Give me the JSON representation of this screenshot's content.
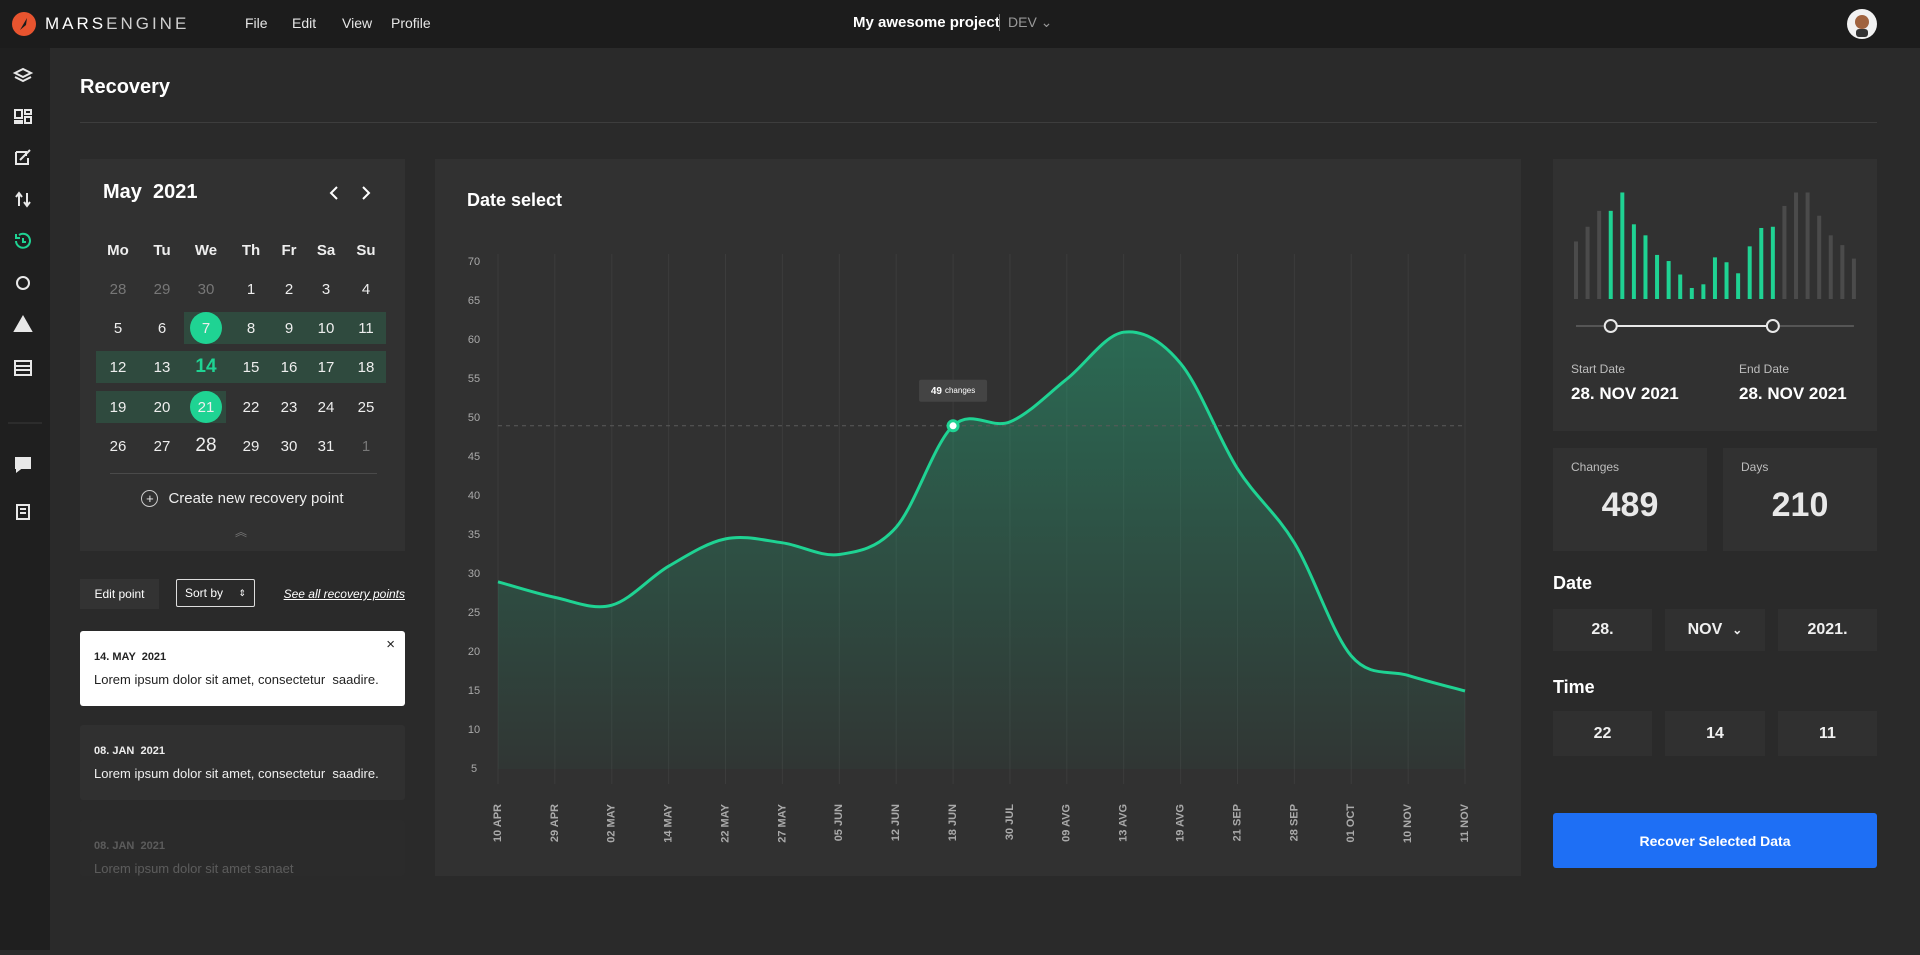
{
  "topbar": {
    "logo_left": "MARS",
    "logo_right": "ENGINE",
    "menu": [
      "File",
      "Edit",
      "View",
      "Profile"
    ],
    "project": "My awesome project",
    "environment": "DEV"
  },
  "page_title": "Recovery",
  "calendar": {
    "month": "May",
    "year": "2021",
    "weekdays": [
      "Mo",
      "Tu",
      "We",
      "Th",
      "Fr",
      "Sa",
      "Su"
    ],
    "weeks": [
      [
        28,
        29,
        30,
        1,
        2,
        3,
        4
      ],
      [
        5,
        6,
        7,
        8,
        9,
        10,
        11
      ],
      [
        12,
        13,
        14,
        15,
        16,
        17,
        18
      ],
      [
        19,
        20,
        21,
        22,
        23,
        24,
        25
      ],
      [
        26,
        27,
        28,
        29,
        30,
        31,
        1
      ]
    ],
    "action": "Create new recovery point"
  },
  "controls": {
    "edit": "Edit point",
    "sort": "Sort by",
    "see_all": "See all recovery points"
  },
  "recovery_points": [
    {
      "date": "14. MAY  2021",
      "text": "Lorem ipsum dolor sit amet, consectetur  saadire."
    },
    {
      "date": "08. JAN  2021",
      "text": "Lorem ipsum dolor sit amet, consectetur  saadire."
    },
    {
      "date": "08. JAN  2021",
      "text": "Lorem ipsum dolor sit amet sanaet"
    }
  ],
  "chart_data": [
    {
      "type": "line",
      "title": "Date select",
      "categories": [
        "10 APR",
        "29 APR",
        "02 MAY",
        "14 MAY",
        "22 MAY",
        "27 MAY",
        "05 JUN",
        "12 JUN",
        "18 JUN",
        "30 JUL",
        "09 AVG",
        "13 AVG",
        "19 AVG",
        "21 SEP",
        "28 SEP",
        "01 OCT",
        "10 NOV",
        "11 NOV"
      ],
      "values": [
        29,
        27,
        26,
        31,
        34.5,
        34,
        32.5,
        36,
        49,
        49.5,
        55,
        61,
        57,
        43.5,
        34,
        19.5,
        17,
        15
      ],
      "value_labels": [
        null,
        null,
        null,
        null,
        null,
        null,
        null,
        null,
        "49",
        null,
        null,
        null,
        null,
        null,
        null,
        null,
        null,
        null
      ],
      "tooltip_text": "changes",
      "color": "#1fd393",
      "ylim": [
        5,
        70
      ],
      "yticks": [
        5,
        10,
        15,
        20,
        25,
        30,
        35,
        40,
        45,
        50,
        55,
        60,
        65,
        70
      ],
      "grid": "x"
    },
    {
      "type": "bar",
      "values": [
        47,
        59,
        72,
        72,
        87,
        61,
        52,
        36,
        31,
        20,
        9,
        12,
        34,
        30,
        21,
        43,
        58,
        59,
        76,
        87,
        87,
        68,
        52,
        44,
        33
      ],
      "color": "#1fd393",
      "muted_color": "#4b4b4b",
      "selected_range": [
        3,
        17
      ]
    }
  ],
  "summary": {
    "start_label": "Start Date",
    "start_value": "28. NOV 2021",
    "end_label": "End Date",
    "end_value": "28. NOV 2021",
    "changes_label": "Changes",
    "changes": 489,
    "days_label": "Days",
    "days": 210
  },
  "date": {
    "label": "Date",
    "fields": [
      "28.",
      "NOV",
      "2021."
    ]
  },
  "time": {
    "label": "Time",
    "fields": [
      "22",
      "14",
      "11"
    ]
  },
  "action": "Recover Selected Data"
}
